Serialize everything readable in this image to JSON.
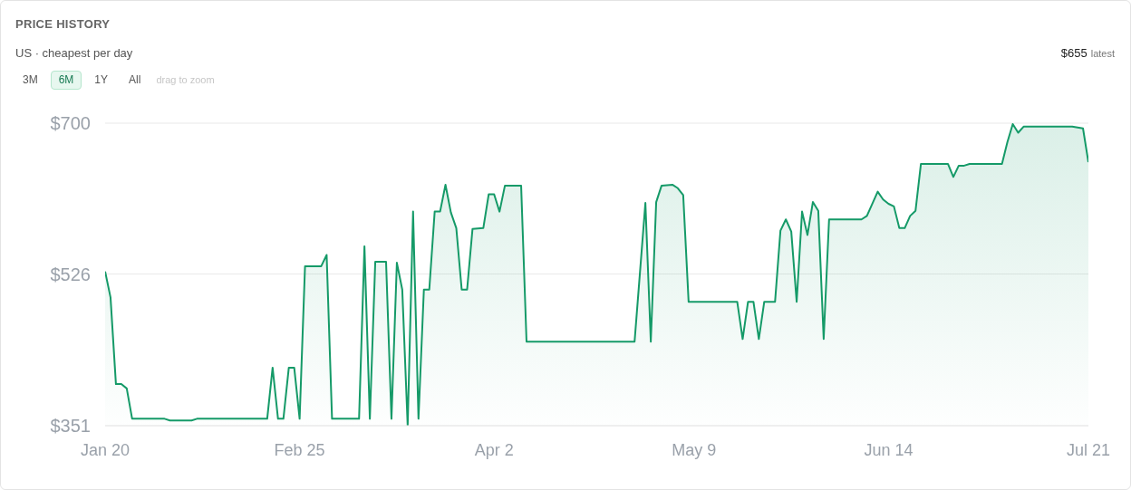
{
  "chart_data": {
    "type": "area",
    "title": "PRICE HISTORY",
    "subtitle": "US · cheapest per day",
    "annotations": [
      "3M",
      "6M",
      "1Y",
      "All",
      "drag to zoom",
      "$655",
      "latest"
    ],
    "x": [
      "--01-20",
      "--01-21",
      "--01-22",
      "--01-23",
      "--01-24",
      "--01-25",
      "--01-31",
      "--02-01",
      "--02-05",
      "--02-06",
      "--02-19",
      "--02-20",
      "--02-21",
      "--02-22",
      "--02-23",
      "--02-24",
      "--02-25",
      "--02-26",
      "--03-01",
      "--03-02",
      "--03-03",
      "--03-08",
      "--03-09",
      "--03-10",
      "--03-11",
      "--03-13",
      "--03-14",
      "--03-15",
      "--03-16",
      "--03-17",
      "--03-18",
      "--03-19",
      "--03-20",
      "--03-21",
      "--03-22",
      "--03-23",
      "--03-24",
      "--03-25",
      "--03-26",
      "--03-27",
      "--03-28",
      "--03-29",
      "--03-31",
      "--04-01",
      "--04-02",
      "--04-03",
      "--04-04",
      "--04-07",
      "--04-08",
      "--04-28",
      "--04-30",
      "--05-01",
      "--05-02",
      "--05-03",
      "--05-05",
      "--05-06",
      "--05-07",
      "--05-08",
      "--05-17",
      "--05-18",
      "--05-19",
      "--05-20",
      "--05-21",
      "--05-22",
      "--05-24",
      "--05-25",
      "--05-26",
      "--05-27",
      "--05-28",
      "--05-29",
      "--05-30",
      "--05-31",
      "--06-01",
      "--06-02",
      "--06-03",
      "--06-09",
      "--06-10",
      "--06-12",
      "--06-13",
      "--06-14",
      "--06-15",
      "--06-16",
      "--06-17",
      "--06-18",
      "--06-19",
      "--06-20",
      "--06-25",
      "--06-26",
      "--06-27",
      "--06-28",
      "--06-29",
      "--07-05",
      "--07-06",
      "--07-07",
      "--07-08",
      "--07-09",
      "--07-18",
      "--07-19",
      "--07-20",
      "--07-21"
    ],
    "values": [
      529,
      499,
      399,
      399,
      394,
      359,
      359,
      357,
      357,
      359,
      359,
      418,
      359,
      359,
      418,
      418,
      359,
      535,
      535,
      548,
      359,
      359,
      558,
      359,
      540,
      540,
      359,
      539,
      508,
      351,
      598,
      359,
      508,
      508,
      598,
      598,
      629,
      597,
      579,
      508,
      508,
      578,
      579,
      618,
      618,
      598,
      628,
      628,
      448,
      448,
      608,
      448,
      609,
      628,
      629,
      625,
      617,
      494,
      494,
      451,
      494,
      494,
      451,
      494,
      494,
      576,
      589,
      575,
      494,
      598,
      571,
      609,
      599,
      451,
      589,
      589,
      593,
      621,
      612,
      607,
      604,
      579,
      579,
      593,
      599,
      653,
      653,
      638,
      651,
      651,
      653,
      653,
      678,
      699,
      689,
      696,
      696,
      695,
      694,
      655
    ],
    "color": "#159a68",
    "xlim": [
      "--01-20",
      "--07-21"
    ],
    "xticks": [
      {
        "value": "--01-20",
        "label": "Jan 20"
      },
      {
        "value": "--02-25",
        "label": "Feb 25"
      },
      {
        "value": "--04-02",
        "label": "Apr 2"
      },
      {
        "value": "--05-09",
        "label": "May 9"
      },
      {
        "value": "--06-14",
        "label": "Jun 14"
      },
      {
        "value": "--07-21",
        "label": "Jul 21"
      }
    ],
    "ylim": [
      351,
      700
    ],
    "yticks": [
      {
        "value": 351,
        "label": "$351"
      },
      {
        "value": 526,
        "label": "$526"
      },
      {
        "value": 700,
        "label": "$700"
      }
    ],
    "grid": "y"
  }
}
